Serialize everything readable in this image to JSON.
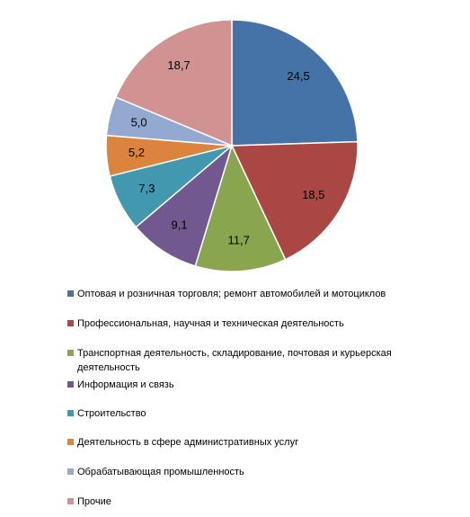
{
  "chart_data": {
    "type": "pie",
    "categories": [
      "Оптовая и розничная торговля; ремонт автомобилей и мотоциклов",
      "Профессиональная, научная и техническая  деятельность",
      "Транспортная деятельность,  складирование, почтовая и курьерская деятельность",
      "Информация и связь",
      "Строительство",
      "Деятельность  в сфере административных услуг",
      "Обрабатывающая промышленность",
      "Прочие"
    ],
    "values": [
      24.5,
      18.5,
      11.7,
      9.1,
      7.3,
      5.2,
      5.0,
      18.7
    ],
    "value_labels": [
      "24,5",
      "18,5",
      "11,7",
      "9,1",
      "7,3",
      "5,2",
      "5,0",
      "18,7"
    ],
    "colors": [
      "#4572a7",
      "#aa4643",
      "#89a54e",
      "#71588f",
      "#4198af",
      "#db843d",
      "#93a9cf",
      "#d19392"
    ],
    "legend": "bottom"
  }
}
